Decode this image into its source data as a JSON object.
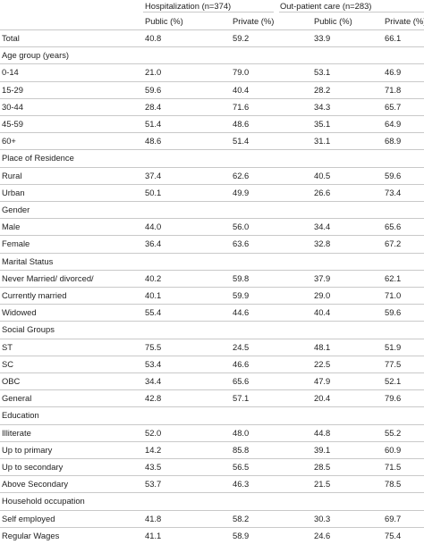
{
  "header": {
    "group_hosp": "Hospitalization (n=374)",
    "group_opd": "Out-patient care (n=283)",
    "col_public_hosp": "Public (%)",
    "col_private_hosp": "Private (%)",
    "col_public_opd": "Public (%)",
    "col_private_opd": "Private (%)"
  },
  "rows": [
    {
      "label": "Total",
      "v": [
        "40.8",
        "59.2",
        "33.9",
        "66.1"
      ]
    },
    {
      "label": "Age group (years)",
      "section": true
    },
    {
      "label": "0-14",
      "v": [
        "21.0",
        "79.0",
        "53.1",
        "46.9"
      ]
    },
    {
      "label": "15-29",
      "v": [
        "59.6",
        "40.4",
        "28.2",
        "71.8"
      ]
    },
    {
      "label": "30-44",
      "v": [
        "28.4",
        "71.6",
        "34.3",
        "65.7"
      ]
    },
    {
      "label": "45-59",
      "v": [
        "51.4",
        "48.6",
        "35.1",
        "64.9"
      ]
    },
    {
      "label": "60+",
      "v": [
        "48.6",
        "51.4",
        "31.1",
        "68.9"
      ]
    },
    {
      "label": "Place of Residence",
      "section": true
    },
    {
      "label": "Rural",
      "v": [
        "37.4",
        "62.6",
        "40.5",
        "59.6"
      ]
    },
    {
      "label": "Urban",
      "v": [
        "50.1",
        "49.9",
        "26.6",
        "73.4"
      ]
    },
    {
      "label": "Gender",
      "section": true
    },
    {
      "label": "Male",
      "v": [
        "44.0",
        "56.0",
        "34.4",
        "65.6"
      ]
    },
    {
      "label": "Female",
      "v": [
        "36.4",
        "63.6",
        "32.8",
        "67.2"
      ]
    },
    {
      "label": "Marital Status",
      "section": true
    },
    {
      "label": "Never Married/ divorced/",
      "v": [
        "40.2",
        "59.8",
        "37.9",
        "62.1"
      ]
    },
    {
      "label": "Currently married",
      "v": [
        "40.1",
        "59.9",
        "29.0",
        "71.0"
      ]
    },
    {
      "label": "Widowed",
      "v": [
        "55.4",
        "44.6",
        "40.4",
        "59.6"
      ]
    },
    {
      "label": "Social Groups",
      "section": true
    },
    {
      "label": "ST",
      "v": [
        "75.5",
        "24.5",
        "48.1",
        "51.9"
      ]
    },
    {
      "label": "SC",
      "v": [
        "53.4",
        "46.6",
        "22.5",
        "77.5"
      ]
    },
    {
      "label": "OBC",
      "v": [
        "34.4",
        "65.6",
        "47.9",
        "52.1"
      ]
    },
    {
      "label": "General",
      "v": [
        "42.8",
        "57.1",
        "20.4",
        "79.6"
      ]
    },
    {
      "label": "Education",
      "section": true
    },
    {
      "label": "Illiterate",
      "v": [
        "52.0",
        "48.0",
        "44.8",
        "55.2"
      ]
    },
    {
      "label": "Up to primary",
      "v": [
        "14.2",
        "85.8",
        "39.1",
        "60.9"
      ]
    },
    {
      "label": "Up to secondary",
      "v": [
        "43.5",
        "56.5",
        "28.5",
        "71.5"
      ]
    },
    {
      "label": "Above Secondary",
      "v": [
        "53.7",
        "46.3",
        "21.5",
        "78.5"
      ]
    },
    {
      "label": "Household occupation",
      "section": true
    },
    {
      "label": "Self employed",
      "v": [
        "41.8",
        "58.2",
        "30.3",
        "69.7"
      ]
    },
    {
      "label": "Regular Wages",
      "v": [
        "41.1",
        "58.9",
        "24.6",
        "75.4"
      ]
    }
  ]
}
